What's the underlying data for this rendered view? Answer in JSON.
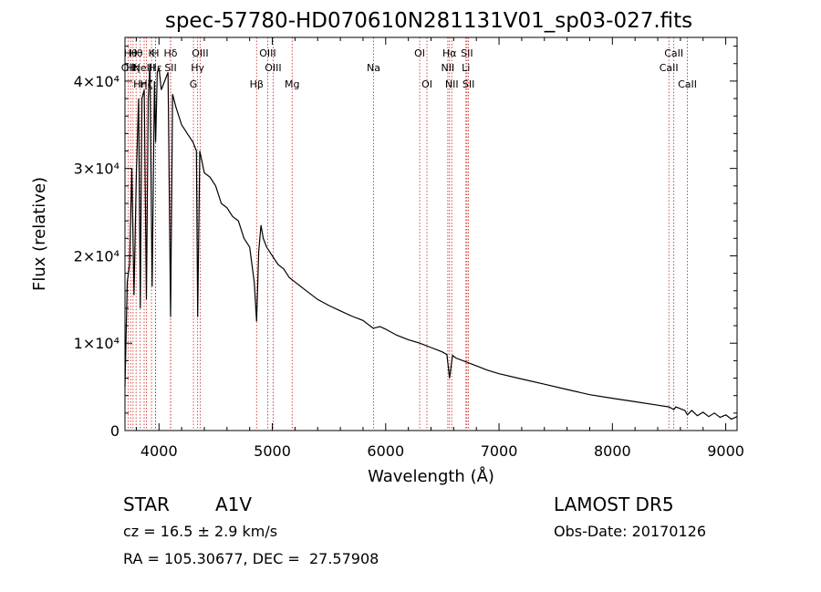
{
  "chart_data": {
    "type": "line",
    "title": "spec-57780-HD070610N281131V01_sp03-027.fits",
    "xlabel": "Wavelength (Å)",
    "ylabel": "Flux (relative)",
    "xlim": [
      3700,
      9100
    ],
    "ylim": [
      0,
      45000
    ],
    "x_ticks": [
      4000,
      5000,
      6000,
      7000,
      8000,
      9000
    ],
    "x_tick_labels": [
      "4000",
      "5000",
      "6000",
      "7000",
      "8000",
      "9000"
    ],
    "y_ticks": [
      0,
      10000,
      20000,
      30000,
      40000
    ],
    "y_tick_labels": [
      "0",
      "1×10⁴",
      "2×10⁴",
      "3×10⁴",
      "4×10⁴"
    ],
    "series": [
      {
        "x": [
          3700,
          3720,
          3740,
          3760,
          3780,
          3800,
          3820,
          3835,
          3850,
          3870,
          3889,
          3905,
          3920,
          3940,
          3960,
          3970,
          3985,
          4000,
          4020,
          4050,
          4080,
          4102,
          4120,
          4150,
          4200,
          4250,
          4300,
          4330,
          4341,
          4360,
          4400,
          4450,
          4500,
          4550,
          4600,
          4650,
          4700,
          4750,
          4800,
          4840,
          4861,
          4880,
          4900,
          4920,
          4950,
          5000,
          5050,
          5100,
          5150,
          5200,
          5300,
          5400,
          5500,
          5600,
          5700,
          5800,
          5890,
          5950,
          6000,
          6100,
          6200,
          6300,
          6400,
          6500,
          6540,
          6563,
          6590,
          6620,
          6700,
          6800,
          6900,
          7000,
          7200,
          7400,
          7600,
          7800,
          8000,
          8200,
          8400,
          8500,
          8542,
          8560,
          8600,
          8640,
          8662,
          8700,
          8750,
          8800,
          8850,
          8900,
          8950,
          9000,
          9050,
          9100
        ],
        "y": [
          5000,
          17000,
          19000,
          30000,
          15500,
          29000,
          38000,
          14000,
          38000,
          39000,
          15000,
          38000,
          42000,
          16500,
          40000,
          33000,
          41000,
          41500,
          39000,
          40000,
          41000,
          13000,
          38500,
          37000,
          35000,
          34000,
          33000,
          32000,
          13000,
          32000,
          29500,
          29000,
          28000,
          26000,
          25500,
          24500,
          24000,
          22000,
          21000,
          17000,
          12500,
          20500,
          23500,
          22000,
          21000,
          20000,
          19000,
          18500,
          17500,
          17000,
          16000,
          15000,
          14300,
          13700,
          13100,
          12600,
          11700,
          11900,
          11600,
          10900,
          10400,
          10000,
          9500,
          9000,
          8700,
          6000,
          8600,
          8300,
          7900,
          7400,
          6900,
          6500,
          5900,
          5300,
          4700,
          4100,
          3700,
          3300,
          2900,
          2700,
          2400,
          2700,
          2500,
          2300,
          1800,
          2300,
          1700,
          2100,
          1600,
          2000,
          1500,
          1800,
          1300,
          1600
        ]
      }
    ],
    "lines": [
      {
        "x": 3727,
        "label": "OII",
        "row": 2
      },
      {
        "x": 3750,
        "label": "Hθ",
        "row": 1
      },
      {
        "x": 3771,
        "label": "Hη",
        "row": 2
      },
      {
        "x": 3798,
        "label": "Hθ",
        "row": 1
      },
      {
        "x": 3835,
        "label": "Hη",
        "row": 3
      },
      {
        "x": 3869,
        "label": "NeIII",
        "row": 2
      },
      {
        "x": 3889,
        "label": "Hζ",
        "row": 3
      },
      {
        "x": 3934,
        "label": "K",
        "row": 1
      },
      {
        "x": 3969,
        "label": "H",
        "row": 1
      },
      {
        "x": 3970,
        "label": "Hε",
        "row": 2
      },
      {
        "x": 4102,
        "label": "Hδ",
        "row": 1
      },
      {
        "x": 4103,
        "label": "SII",
        "row": 2
      },
      {
        "x": 4304,
        "label": "G",
        "row": 3
      },
      {
        "x": 4341,
        "label": "Hγ",
        "row": 2
      },
      {
        "x": 4363,
        "label": "OIII",
        "row": 1
      },
      {
        "x": 4861,
        "label": "Hβ",
        "row": 3
      },
      {
        "x": 4959,
        "label": "OIII",
        "row": 1
      },
      {
        "x": 5007,
        "label": "OIII",
        "row": 2
      },
      {
        "x": 5175,
        "label": "Mg",
        "row": 3
      },
      {
        "x": 5893,
        "label": "Na",
        "row": 2
      },
      {
        "x": 6300,
        "label": "OI",
        "row": 1
      },
      {
        "x": 6364,
        "label": "OI",
        "row": 3
      },
      {
        "x": 6548,
        "label": "NII",
        "row": 2
      },
      {
        "x": 6563,
        "label": "Hα",
        "row": 1
      },
      {
        "x": 6583,
        "label": "NII",
        "row": 3
      },
      {
        "x": 6708,
        "label": "Li",
        "row": 2
      },
      {
        "x": 6717,
        "label": "SII",
        "row": 1
      },
      {
        "x": 6731,
        "label": "SII",
        "row": 3
      },
      {
        "x": 8498,
        "label": "CaII",
        "row": 2
      },
      {
        "x": 8542,
        "label": "CaII",
        "row": 1
      },
      {
        "x": 8662,
        "label": "CaII",
        "row": 3
      }
    ]
  },
  "info": {
    "class_label": "STAR",
    "subclass": "A1V",
    "survey": "LAMOST DR5",
    "cz": "cz = 16.5 ± 2.9 km/s",
    "obs_date": "Obs-Date: 20170126",
    "coords": "RA = 105.30677, DEC =  27.57908"
  },
  "colors": {
    "axis": "#000000",
    "spectrum": "#000000",
    "line_marker": "#c81e1e"
  }
}
